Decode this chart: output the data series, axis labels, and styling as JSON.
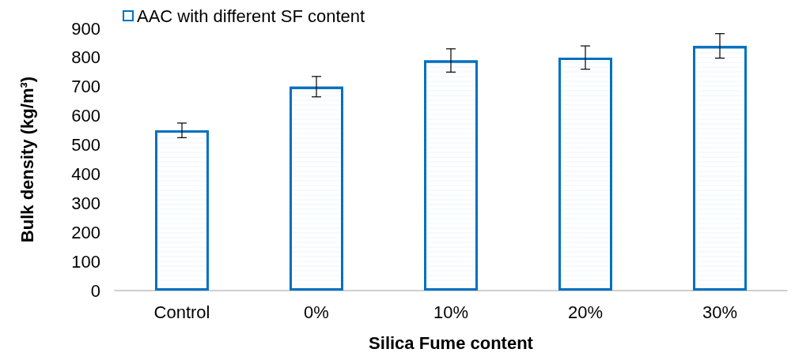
{
  "chart_data": {
    "type": "bar",
    "xlabel": "Silica Fume content",
    "ylabel": "Bulk density (kg/m³)",
    "categories": [
      "Control",
      "0%",
      "10%",
      "20%",
      "30%"
    ],
    "series": [
      {
        "name": "AAC with different SF content",
        "color": "#0070c0",
        "values": [
          550,
          700,
          790,
          800,
          840
        ],
        "errors": [
          25,
          35,
          40,
          40,
          42
        ]
      }
    ],
    "ylim": [
      0,
      900
    ],
    "yticks": [
      0,
      100,
      200,
      300,
      400,
      500,
      600,
      700,
      800,
      900
    ],
    "grid": false,
    "legend": "top left"
  }
}
